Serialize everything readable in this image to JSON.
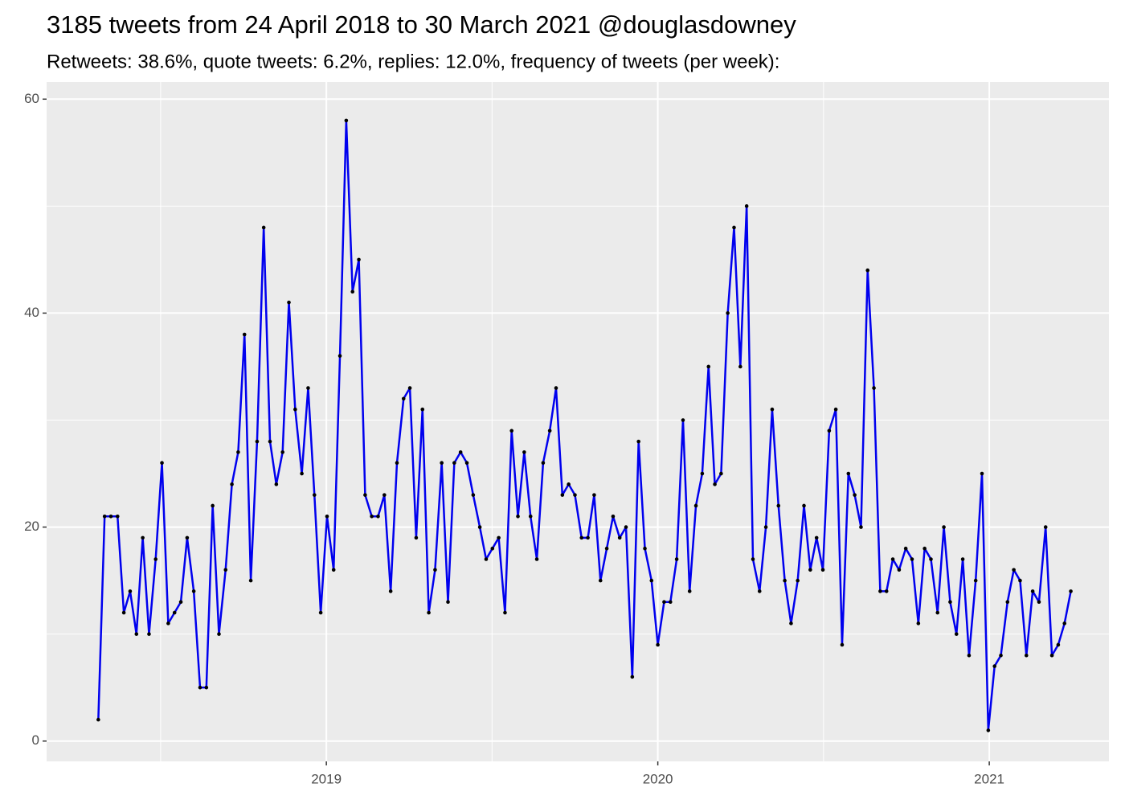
{
  "chart_data": {
    "type": "line",
    "title": "3185 tweets from 24 April 2018 to 30 March 2021 @douglasdowney",
    "subtitle": "Retweets: 38.6%, quote tweets: 6.2%, replies: 12.0%, frequency of tweets (per week):",
    "x": [
      2018.312,
      2018.331,
      2018.35,
      2018.37,
      2018.389,
      2018.408,
      2018.427,
      2018.446,
      2018.465,
      2018.485,
      2018.504,
      2018.523,
      2018.542,
      2018.561,
      2018.58,
      2018.6,
      2018.619,
      2018.638,
      2018.657,
      2018.676,
      2018.696,
      2018.715,
      2018.734,
      2018.753,
      2018.772,
      2018.791,
      2018.811,
      2018.83,
      2018.849,
      2018.868,
      2018.887,
      2018.906,
      2018.926,
      2018.945,
      2018.964,
      2018.983,
      2019.002,
      2019.022,
      2019.041,
      2019.06,
      2019.079,
      2019.098,
      2019.117,
      2019.137,
      2019.156,
      2019.175,
      2019.194,
      2019.213,
      2019.233,
      2019.252,
      2019.271,
      2019.29,
      2019.309,
      2019.328,
      2019.348,
      2019.367,
      2019.386,
      2019.405,
      2019.424,
      2019.443,
      2019.463,
      2019.482,
      2019.501,
      2019.52,
      2019.539,
      2019.559,
      2019.578,
      2019.597,
      2019.616,
      2019.635,
      2019.654,
      2019.674,
      2019.693,
      2019.712,
      2019.731,
      2019.75,
      2019.77,
      2019.789,
      2019.808,
      2019.827,
      2019.846,
      2019.865,
      2019.885,
      2019.904,
      2019.923,
      2019.942,
      2019.961,
      2019.981,
      2020.0,
      2020.019,
      2020.038,
      2020.057,
      2020.076,
      2020.096,
      2020.115,
      2020.134,
      2020.153,
      2020.172,
      2020.191,
      2020.211,
      2020.23,
      2020.249,
      2020.268,
      2020.287,
      2020.307,
      2020.326,
      2020.345,
      2020.364,
      2020.383,
      2020.402,
      2020.422,
      2020.441,
      2020.46,
      2020.479,
      2020.498,
      2020.517,
      2020.537,
      2020.556,
      2020.575,
      2020.594,
      2020.613,
      2020.633,
      2020.652,
      2020.671,
      2020.69,
      2020.709,
      2020.728,
      2020.748,
      2020.767,
      2020.786,
      2020.805,
      2020.824,
      2020.844,
      2020.863,
      2020.882,
      2020.901,
      2020.92,
      2020.939,
      2020.959,
      2020.978,
      2020.997,
      2021.016,
      2021.035,
      2021.055,
      2021.074,
      2021.093,
      2021.112,
      2021.131,
      2021.15,
      2021.17,
      2021.189,
      2021.208,
      2021.227,
      2021.246
    ],
    "series": [
      {
        "name": "tweets per week",
        "color": "#0000ee",
        "point_color": "#000000",
        "values": [
          2,
          21,
          21,
          21,
          12,
          14,
          10,
          19,
          10,
          17,
          26,
          11,
          12,
          13,
          19,
          14,
          5,
          5,
          22,
          10,
          16,
          24,
          27,
          38,
          15,
          28,
          48,
          28,
          24,
          27,
          41,
          31,
          25,
          33,
          23,
          12,
          21,
          16,
          36,
          58,
          42,
          45,
          23,
          21,
          21,
          23,
          14,
          26,
          32,
          33,
          19,
          31,
          12,
          16,
          26,
          13,
          26,
          27,
          26,
          23,
          20,
          17,
          18,
          19,
          12,
          29,
          21,
          27,
          21,
          17,
          26,
          29,
          33,
          23,
          24,
          23,
          19,
          19,
          23,
          15,
          18,
          21,
          19,
          20,
          6,
          28,
          18,
          15,
          9,
          13,
          13,
          17,
          30,
          14,
          22,
          25,
          35,
          24,
          25,
          40,
          48,
          35,
          50,
          17,
          14,
          20,
          31,
          22,
          15,
          11,
          15,
          22,
          16,
          19,
          16,
          29,
          31,
          9,
          25,
          23,
          20,
          44,
          33,
          14,
          14,
          17,
          16,
          18,
          17,
          11,
          18,
          17,
          12,
          20,
          13,
          10,
          17,
          8,
          15,
          25,
          1,
          7,
          8,
          13,
          16,
          15,
          8,
          14,
          13,
          20,
          8,
          9,
          11,
          14
        ]
      }
    ],
    "xlim": [
      2018.156,
      2021.361
    ],
    "xticks": [
      2019,
      2020,
      2021
    ],
    "ylim": [
      -1.9,
      61.6
    ],
    "yticks": [
      0,
      20,
      40,
      60
    ],
    "grid": true
  }
}
